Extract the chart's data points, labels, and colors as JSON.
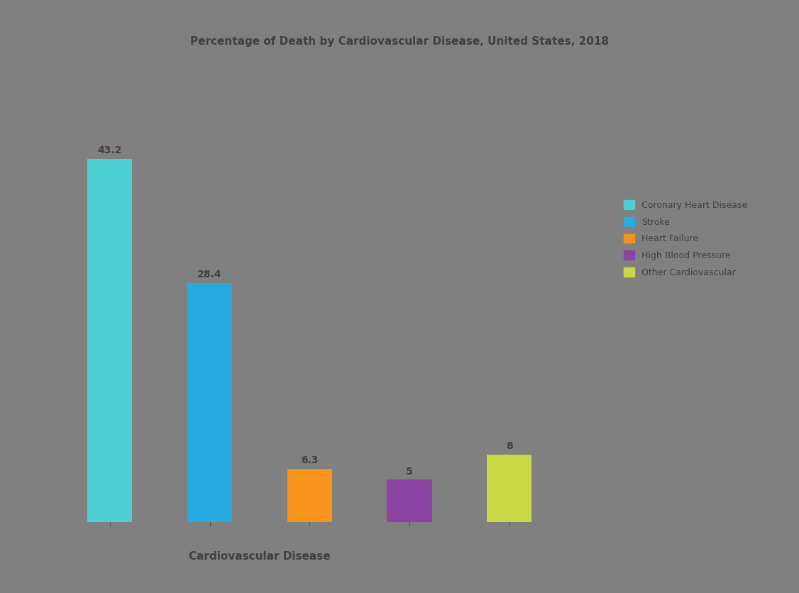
{
  "title": "Percentage of Death by Cardiovascular Disease, United States, 2018",
  "categories": [
    "Coronary Heart Disease",
    "Stroke",
    "Heart Failure",
    "High Blood Pressure",
    "Other Cardiovascular"
  ],
  "values": [
    43.2,
    28.4,
    6.3,
    5.0,
    8.0
  ],
  "bar_colors": [
    "#4ECFD4",
    "#29ABE2",
    "#F7941D",
    "#8B44A2",
    "#C8D945"
  ],
  "value_labels": [
    "43.2",
    "28.4",
    "6.3",
    "5",
    "8"
  ],
  "legend_labels": [
    "Coronary Heart Disease",
    "Stroke",
    "Heart Failure",
    "High Blood Pressure",
    "Other Cardiovascular"
  ],
  "background_color": "#808080",
  "text_color": "#404040",
  "xlabel": "Cardiovascular Disease",
  "ylabel": "",
  "ylim": [
    0,
    55
  ],
  "title_fontsize": 11,
  "label_fontsize": 9,
  "value_fontsize": 10
}
